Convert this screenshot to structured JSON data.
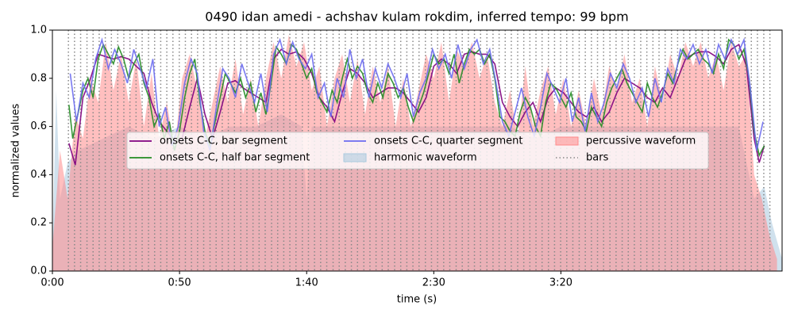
{
  "chart_data": {
    "type": "line",
    "title": "0490 idan amedi - achshav kulam rokdim, inferred tempo: 99 bpm",
    "xlabel": "time (s)",
    "ylabel": "normalized values",
    "xlim": [
      0,
      287
    ],
    "ylim": [
      0,
      1
    ],
    "xticks": [
      {
        "value": 0,
        "label": "0:00"
      },
      {
        "value": 50,
        "label": "0:50"
      },
      {
        "value": 100,
        "label": "1:40"
      },
      {
        "value": 150,
        "label": "2:30"
      },
      {
        "value": 200,
        "label": "3:20"
      }
    ],
    "yticks": [
      {
        "value": 0,
        "label": "0.0"
      },
      0.2,
      0.4,
      0.6,
      0.8,
      {
        "value": 1,
        "label": "1.0"
      }
    ],
    "legend": "center",
    "series": [
      {
        "name": "onsets C-C, bar segment",
        "type": "line",
        "color": "#800080",
        "x": [
          6.5,
          9,
          12,
          15,
          18,
          21,
          24,
          27,
          30,
          33,
          36,
          39,
          42,
          45,
          48,
          51,
          54,
          57,
          60,
          63,
          66,
          69,
          72,
          75,
          78,
          81,
          84,
          87,
          90,
          93,
          96,
          99,
          102,
          105,
          108,
          111,
          114,
          117,
          120,
          123,
          126,
          129,
          132,
          135,
          138,
          141,
          144,
          147,
          150,
          153,
          156,
          159,
          162,
          165,
          168,
          171,
          174,
          177,
          180,
          183,
          186,
          189,
          192,
          195,
          198,
          201,
          204,
          207,
          210,
          213,
          216,
          219,
          222,
          225,
          228,
          231,
          234,
          237,
          240,
          243,
          246,
          249,
          252,
          255,
          258,
          261,
          264,
          267,
          270,
          273,
          276,
          278,
          280
        ],
        "values": [
          0.53,
          0.44,
          0.72,
          0.8,
          0.9,
          0.89,
          0.88,
          0.89,
          0.88,
          0.85,
          0.82,
          0.7,
          0.62,
          0.58,
          0.54,
          0.55,
          0.68,
          0.8,
          0.65,
          0.55,
          0.66,
          0.78,
          0.79,
          0.76,
          0.74,
          0.72,
          0.7,
          0.88,
          0.92,
          0.9,
          0.91,
          0.88,
          0.82,
          0.72,
          0.68,
          0.62,
          0.74,
          0.84,
          0.82,
          0.78,
          0.72,
          0.74,
          0.76,
          0.76,
          0.74,
          0.7,
          0.66,
          0.72,
          0.85,
          0.88,
          0.86,
          0.82,
          0.9,
          0.91,
          0.9,
          0.9,
          0.86,
          0.7,
          0.64,
          0.6,
          0.66,
          0.7,
          0.62,
          0.72,
          0.76,
          0.74,
          0.7,
          0.66,
          0.64,
          0.68,
          0.62,
          0.66,
          0.74,
          0.8,
          0.78,
          0.76,
          0.72,
          0.7,
          0.76,
          0.72,
          0.8,
          0.88,
          0.9,
          0.91,
          0.91,
          0.89,
          0.86,
          0.92,
          0.94,
          0.85,
          0.55,
          0.45,
          0.52
        ]
      },
      {
        "name": "onsets C-C, half bar segment",
        "type": "line",
        "color": "#228b22",
        "x": [
          6.5,
          8,
          10,
          12,
          14,
          16,
          18,
          20,
          22,
          24,
          26,
          28,
          30,
          32,
          34,
          36,
          38,
          40,
          42,
          44,
          46,
          48,
          50,
          52,
          54,
          56,
          58,
          60,
          62,
          64,
          66,
          68,
          70,
          72,
          74,
          76,
          78,
          80,
          82,
          84,
          86,
          88,
          90,
          92,
          94,
          96,
          98,
          100,
          102,
          104,
          106,
          108,
          110,
          112,
          114,
          116,
          118,
          120,
          122,
          124,
          126,
          128,
          130,
          132,
          134,
          136,
          138,
          140,
          142,
          144,
          146,
          148,
          150,
          152,
          154,
          156,
          158,
          160,
          162,
          164,
          166,
          168,
          170,
          172,
          174,
          176,
          178,
          180,
          182,
          184,
          186,
          188,
          190,
          192,
          194,
          196,
          198,
          200,
          202,
          204,
          206,
          208,
          210,
          212,
          214,
          216,
          218,
          220,
          222,
          224,
          226,
          228,
          230,
          232,
          234,
          236,
          238,
          240,
          242,
          244,
          246,
          248,
          250,
          252,
          254,
          256,
          258,
          260,
          262,
          264,
          266,
          268,
          270,
          272,
          274,
          276,
          278,
          280
        ],
        "values": [
          0.69,
          0.55,
          0.65,
          0.75,
          0.8,
          0.72,
          0.88,
          0.94,
          0.9,
          0.86,
          0.93,
          0.88,
          0.8,
          0.86,
          0.9,
          0.78,
          0.72,
          0.6,
          0.65,
          0.55,
          0.62,
          0.5,
          0.58,
          0.72,
          0.82,
          0.88,
          0.7,
          0.58,
          0.52,
          0.62,
          0.72,
          0.82,
          0.78,
          0.74,
          0.8,
          0.72,
          0.78,
          0.66,
          0.74,
          0.65,
          0.78,
          0.93,
          0.9,
          0.86,
          0.94,
          0.92,
          0.86,
          0.8,
          0.84,
          0.74,
          0.7,
          0.66,
          0.75,
          0.7,
          0.8,
          0.88,
          0.8,
          0.85,
          0.82,
          0.74,
          0.7,
          0.78,
          0.72,
          0.82,
          0.78,
          0.72,
          0.76,
          0.68,
          0.62,
          0.68,
          0.74,
          0.82,
          0.9,
          0.86,
          0.88,
          0.82,
          0.9,
          0.78,
          0.86,
          0.92,
          0.9,
          0.92,
          0.86,
          0.9,
          0.8,
          0.64,
          0.62,
          0.58,
          0.56,
          0.66,
          0.72,
          0.68,
          0.6,
          0.56,
          0.7,
          0.78,
          0.76,
          0.72,
          0.68,
          0.74,
          0.64,
          0.62,
          0.58,
          0.68,
          0.64,
          0.6,
          0.7,
          0.76,
          0.8,
          0.84,
          0.78,
          0.74,
          0.7,
          0.66,
          0.78,
          0.72,
          0.68,
          0.74,
          0.82,
          0.78,
          0.86,
          0.92,
          0.88,
          0.9,
          0.92,
          0.88,
          0.86,
          0.82,
          0.9,
          0.84,
          0.96,
          0.94,
          0.88,
          0.92,
          0.8,
          0.58,
          0.48,
          0.52
        ]
      },
      {
        "name": "onsets C-C, quarter segment",
        "type": "line",
        "color": "#6b6bf0",
        "x": [
          7,
          9.5,
          12,
          14.5,
          17,
          19.5,
          22,
          24.5,
          27,
          29.5,
          32,
          34.5,
          37,
          39.5,
          42,
          44.5,
          47,
          49.5,
          52,
          54.5,
          57,
          59.5,
          62,
          64.5,
          67,
          69.5,
          72,
          74.5,
          77,
          79.5,
          82,
          84.5,
          87,
          89.5,
          92,
          94.5,
          97,
          99.5,
          102,
          104.5,
          107,
          109.5,
          112,
          114.5,
          117,
          119.5,
          122,
          124.5,
          127,
          129.5,
          132,
          134.5,
          137,
          139.5,
          142,
          144.5,
          147,
          149.5,
          152,
          154.5,
          157,
          159.5,
          162,
          164.5,
          167,
          169.5,
          172,
          174.5,
          177,
          179.5,
          182,
          184.5,
          187,
          189.5,
          192,
          194.5,
          197,
          199.5,
          202,
          204.5,
          207,
          209.5,
          212,
          214.5,
          217,
          219.5,
          222,
          224.5,
          227,
          229.5,
          232,
          234.5,
          237,
          239.5,
          242,
          244.5,
          247,
          249.5,
          252,
          254.5,
          257,
          259.5,
          262,
          264.5,
          267,
          269.5,
          272,
          274.5,
          277,
          279.5
        ],
        "values": [
          0.82,
          0.62,
          0.78,
          0.72,
          0.88,
          0.96,
          0.84,
          0.92,
          0.86,
          0.78,
          0.92,
          0.84,
          0.76,
          0.88,
          0.6,
          0.68,
          0.52,
          0.6,
          0.78,
          0.88,
          0.82,
          0.58,
          0.5,
          0.68,
          0.84,
          0.8,
          0.72,
          0.86,
          0.78,
          0.7,
          0.82,
          0.66,
          0.9,
          0.96,
          0.86,
          0.95,
          0.88,
          0.84,
          0.9,
          0.72,
          0.78,
          0.64,
          0.8,
          0.72,
          0.92,
          0.8,
          0.88,
          0.72,
          0.84,
          0.76,
          0.86,
          0.8,
          0.72,
          0.82,
          0.64,
          0.74,
          0.8,
          0.92,
          0.84,
          0.9,
          0.8,
          0.94,
          0.84,
          0.92,
          0.96,
          0.86,
          0.92,
          0.78,
          0.62,
          0.56,
          0.66,
          0.76,
          0.64,
          0.56,
          0.68,
          0.82,
          0.76,
          0.7,
          0.8,
          0.62,
          0.72,
          0.58,
          0.74,
          0.62,
          0.7,
          0.82,
          0.76,
          0.86,
          0.8,
          0.7,
          0.76,
          0.64,
          0.8,
          0.7,
          0.84,
          0.78,
          0.92,
          0.88,
          0.94,
          0.86,
          0.92,
          0.82,
          0.94,
          0.88,
          0.96,
          0.9,
          0.96,
          0.76,
          0.5,
          0.62
        ]
      },
      {
        "name": "harmonic waveform",
        "type": "area",
        "color": "#a9c9de",
        "x": [
          0,
          1.5,
          3,
          6,
          10,
          20,
          30,
          40,
          50,
          60,
          70,
          80,
          90,
          98,
          100,
          102,
          110,
          120,
          130,
          140,
          150,
          160,
          170,
          180,
          190,
          200,
          210,
          220,
          230,
          240,
          250,
          260,
          270,
          276,
          280,
          283,
          287
        ],
        "values": [
          0.1,
          0.75,
          0.3,
          0.45,
          0.5,
          0.55,
          0.6,
          0.55,
          0.6,
          0.55,
          0.6,
          0.6,
          0.65,
          0.6,
          0.3,
          0.6,
          0.6,
          0.6,
          0.6,
          0.6,
          0.6,
          0.6,
          0.6,
          0.6,
          0.55,
          0.6,
          0.6,
          0.6,
          0.6,
          0.6,
          0.6,
          0.6,
          0.6,
          0.3,
          0.35,
          0.2,
          0.05
        ]
      },
      {
        "name": "percussive waveform",
        "type": "area",
        "color": "#ff8a8a",
        "x": [
          0,
          3,
          6,
          9,
          12,
          15,
          18,
          21,
          24,
          27,
          30,
          33,
          36,
          39,
          42,
          45,
          48,
          51,
          54,
          57,
          60,
          63,
          66,
          69,
          72,
          75,
          78,
          81,
          84,
          87,
          90,
          93,
          96,
          99,
          102,
          105,
          108,
          111,
          114,
          117,
          120,
          123,
          126,
          129,
          132,
          135,
          138,
          141,
          144,
          147,
          150,
          153,
          156,
          159,
          162,
          165,
          168,
          171,
          174,
          177,
          180,
          183,
          186,
          189,
          192,
          195,
          198,
          201,
          204,
          207,
          210,
          213,
          216,
          219,
          222,
          225,
          228,
          231,
          234,
          237,
          240,
          243,
          246,
          249,
          252,
          255,
          258,
          261,
          264,
          267,
          270,
          273,
          276,
          279,
          282,
          285
        ],
        "values": [
          0.1,
          0.5,
          0.3,
          0.65,
          0.55,
          0.8,
          0.7,
          0.95,
          0.75,
          0.9,
          0.7,
          0.88,
          0.6,
          0.82,
          0.55,
          0.7,
          0.5,
          0.8,
          0.9,
          0.75,
          0.55,
          0.7,
          0.85,
          0.7,
          0.88,
          0.65,
          0.8,
          0.6,
          0.8,
          0.95,
          0.8,
          0.98,
          0.85,
          0.95,
          0.75,
          0.85,
          0.6,
          0.8,
          0.9,
          0.7,
          0.88,
          0.65,
          0.85,
          0.7,
          0.85,
          0.6,
          0.8,
          0.6,
          0.75,
          0.9,
          0.8,
          0.95,
          0.7,
          0.92,
          0.85,
          0.95,
          0.8,
          0.9,
          0.7,
          0.6,
          0.75,
          0.55,
          0.85,
          0.6,
          0.75,
          0.85,
          0.65,
          0.8,
          0.6,
          0.75,
          0.6,
          0.8,
          0.65,
          0.85,
          0.75,
          0.9,
          0.7,
          0.8,
          0.6,
          0.85,
          0.7,
          0.9,
          0.8,
          0.95,
          0.85,
          0.95,
          0.8,
          0.9,
          0.75,
          0.95,
          0.85,
          0.9,
          0.4,
          0.3,
          0.15,
          0.05
        ]
      },
      {
        "name": "bars",
        "type": "vlines",
        "color": "#888888",
        "x": [
          6.3,
          8.7,
          11.1,
          13.6,
          16,
          18.4,
          20.8,
          23.2,
          25.7,
          28.1,
          30.5,
          32.9,
          35.3,
          37.8,
          40.2,
          42.6,
          45,
          47.4,
          49.9,
          52.3,
          54.7,
          57.1,
          59.5,
          62,
          64.4,
          66.8,
          69.2,
          71.6,
          74.1,
          76.5,
          78.9,
          81.3,
          83.7,
          86.2,
          88.6,
          91,
          93.4,
          95.8,
          98.3,
          100.7,
          103.1,
          105.5,
          107.9,
          110.4,
          112.8,
          115.2,
          117.6,
          120,
          122.5,
          124.9,
          127.3,
          129.7,
          132.1,
          134.6,
          137,
          139.4,
          141.8,
          144.2,
          146.7,
          149.1,
          151.5,
          153.9,
          156.3,
          158.8,
          161.2,
          163.6,
          166,
          168.4,
          170.9,
          173.3,
          175.7,
          178.1,
          180.5,
          183,
          185.4,
          187.8,
          190.2,
          192.6,
          195.1,
          197.5,
          199.9,
          202.3,
          204.7,
          207.2,
          209.6,
          212,
          214.4,
          216.8,
          219.3,
          221.7,
          224.1,
          226.5,
          228.9,
          231.4,
          233.8,
          236.2,
          238.6,
          241,
          243.5,
          245.9,
          248.3,
          250.7,
          253.1,
          255.6,
          258,
          260.4,
          262.8,
          265.2,
          267.7,
          270.1,
          272.5,
          274.9,
          277.3,
          279.8,
          282.2
        ]
      }
    ]
  }
}
